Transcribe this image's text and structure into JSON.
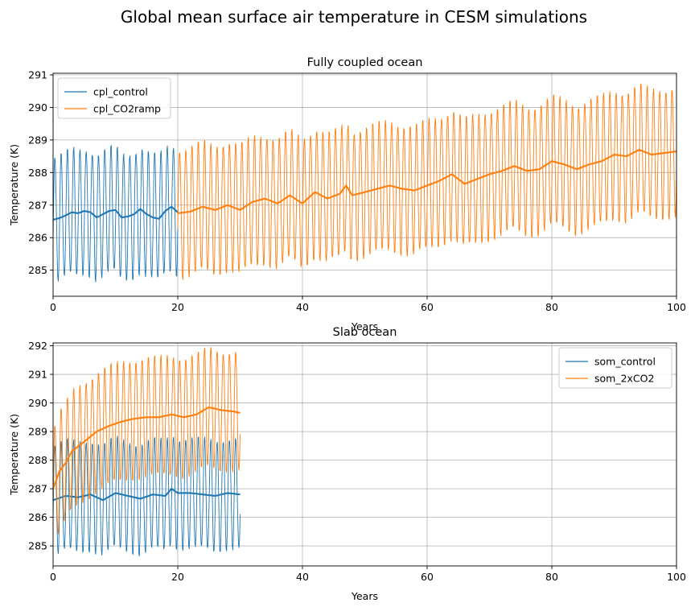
{
  "figure_title": "Global mean surface air temperature in CESM simulations",
  "chart_data": [
    {
      "type": "line",
      "title": "Fully coupled ocean",
      "xlabel": "Years",
      "ylabel": "Temperature (K)",
      "xlim": [
        0,
        100
      ],
      "ylim": [
        284.2,
        291.05
      ],
      "xticks": [
        0,
        20,
        40,
        60,
        80,
        100
      ],
      "yticks": [
        285,
        286,
        287,
        288,
        289,
        290,
        291
      ],
      "grid": true,
      "legend_position": "upper-left",
      "series": [
        {
          "name": "cpl_control",
          "color": "#1f77b4",
          "start": 0,
          "end": 20,
          "seasonal_amplitude": 1.95,
          "mean_points": [
            [
              0,
              286.55
            ],
            [
              1,
              286.6
            ],
            [
              2,
              286.68
            ],
            [
              3,
              286.78
            ],
            [
              4,
              286.75
            ],
            [
              5,
              286.82
            ],
            [
              6,
              286.78
            ],
            [
              7,
              286.62
            ],
            [
              8,
              286.72
            ],
            [
              9,
              286.82
            ],
            [
              10,
              286.85
            ],
            [
              11,
              286.62
            ],
            [
              12,
              286.65
            ],
            [
              13,
              286.72
            ],
            [
              14,
              286.88
            ],
            [
              15,
              286.72
            ],
            [
              16,
              286.62
            ],
            [
              17,
              286.58
            ],
            [
              18,
              286.82
            ],
            [
              19,
              286.95
            ],
            [
              20,
              286.78
            ]
          ],
          "has_annual_mean": true
        },
        {
          "name": "cpl_CO2ramp",
          "color": "#ff7f0e",
          "start": 20,
          "end": 100,
          "seasonal_amplitude": 2.0,
          "mean_points": [
            [
              20,
              286.75
            ],
            [
              22,
              286.8
            ],
            [
              24,
              286.95
            ],
            [
              26,
              286.85
            ],
            [
              28,
              287.0
            ],
            [
              30,
              286.85
            ],
            [
              32,
              287.1
            ],
            [
              34,
              287.2
            ],
            [
              36,
              287.05
            ],
            [
              38,
              287.3
            ],
            [
              40,
              287.05
            ],
            [
              42,
              287.4
            ],
            [
              44,
              287.2
            ],
            [
              46,
              287.35
            ],
            [
              47,
              287.6
            ],
            [
              48,
              287.3
            ],
            [
              50,
              287.4
            ],
            [
              52,
              287.5
            ],
            [
              54,
              287.6
            ],
            [
              56,
              287.5
            ],
            [
              58,
              287.45
            ],
            [
              60,
              287.6
            ],
            [
              62,
              287.75
            ],
            [
              64,
              287.95
            ],
            [
              66,
              287.65
            ],
            [
              68,
              287.8
            ],
            [
              70,
              287.95
            ],
            [
              72,
              288.05
            ],
            [
              74,
              288.2
            ],
            [
              76,
              288.05
            ],
            [
              78,
              288.1
            ],
            [
              80,
              288.35
            ],
            [
              82,
              288.25
            ],
            [
              84,
              288.1
            ],
            [
              86,
              288.25
            ],
            [
              88,
              288.35
            ],
            [
              90,
              288.55
            ],
            [
              92,
              288.5
            ],
            [
              94,
              288.7
            ],
            [
              96,
              288.55
            ],
            [
              98,
              288.6
            ],
            [
              100,
              288.65
            ]
          ],
          "has_annual_mean": true
        }
      ]
    },
    {
      "type": "line",
      "title": "Slab ocean",
      "xlabel": "Years",
      "ylabel": "Temperature (K)",
      "xlim": [
        0,
        100
      ],
      "ylim": [
        284.3,
        292.1
      ],
      "xticks": [
        0,
        20,
        40,
        60,
        80,
        100
      ],
      "yticks": [
        285,
        286,
        287,
        288,
        289,
        290,
        291,
        292
      ],
      "grid": true,
      "legend_position": "upper-right",
      "series": [
        {
          "name": "som_control",
          "color": "#1f77b4",
          "start": 0,
          "end": 30,
          "seasonal_amplitude": 1.95,
          "mean_points": [
            [
              0,
              286.6
            ],
            [
              2,
              286.75
            ],
            [
              4,
              286.7
            ],
            [
              6,
              286.8
            ],
            [
              8,
              286.6
            ],
            [
              10,
              286.85
            ],
            [
              12,
              286.75
            ],
            [
              14,
              286.65
            ],
            [
              16,
              286.8
            ],
            [
              18,
              286.75
            ],
            [
              19,
              287.0
            ],
            [
              20,
              286.85
            ],
            [
              22,
              286.85
            ],
            [
              24,
              286.8
            ],
            [
              26,
              286.75
            ],
            [
              28,
              286.85
            ],
            [
              30,
              286.8
            ]
          ],
          "has_annual_mean": true
        },
        {
          "name": "som_2xCO2",
          "color": "#ff7f0e",
          "start": 0,
          "end": 30,
          "seasonal_amplitude": 2.1,
          "mean_points": [
            [
              0,
              287.0
            ],
            [
              1,
              287.6
            ],
            [
              2,
              287.9
            ],
            [
              3,
              288.3
            ],
            [
              5,
              288.65
            ],
            [
              7,
              289.0
            ],
            [
              9,
              289.2
            ],
            [
              11,
              289.35
            ],
            [
              13,
              289.45
            ],
            [
              15,
              289.5
            ],
            [
              17,
              289.5
            ],
            [
              19,
              289.6
            ],
            [
              21,
              289.5
            ],
            [
              23,
              289.6
            ],
            [
              25,
              289.85
            ],
            [
              27,
              289.75
            ],
            [
              29,
              289.7
            ],
            [
              30,
              289.65
            ]
          ],
          "has_annual_mean": true
        }
      ]
    }
  ]
}
